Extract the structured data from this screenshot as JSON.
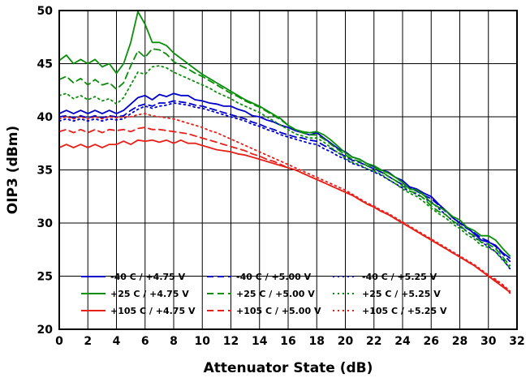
{
  "chart_data": {
    "type": "line",
    "title": "",
    "xlabel": "Attenuator State (dB)",
    "ylabel": "OIP3 (dBm)",
    "xlim": [
      0,
      32
    ],
    "ylim": [
      20,
      50
    ],
    "xticks": [
      "0",
      "2",
      "4",
      "6",
      "8",
      "10",
      "12",
      "14",
      "16",
      "18",
      "20",
      "22",
      "24",
      "26",
      "28",
      "30",
      "32"
    ],
    "yticks": [
      "20",
      "25",
      "30",
      "35",
      "40",
      "45",
      "50"
    ],
    "grid": true,
    "legend_placement": "bottom-left",
    "x": [
      0,
      0.5,
      1,
      1.5,
      2,
      2.5,
      3,
      3.5,
      4,
      4.5,
      5,
      5.5,
      6,
      6.5,
      7,
      7.5,
      8,
      8.5,
      9,
      9.5,
      10,
      10.5,
      11,
      11.5,
      12,
      12.5,
      13,
      13.5,
      14,
      14.5,
      15,
      15.5,
      16,
      16.5,
      17,
      17.5,
      18,
      18.5,
      19,
      19.5,
      20,
      20.5,
      21,
      21.5,
      22,
      22.5,
      23,
      23.5,
      24,
      24.5,
      25,
      25.5,
      26,
      26.5,
      27,
      27.5,
      28,
      28.5,
      29,
      29.5,
      30,
      30.5,
      31,
      31.5
    ],
    "series": [
      {
        "name": "-40 C / +4.75 V",
        "color": "#0000cc",
        "dash": "solid",
        "values": [
          40.3,
          40.6,
          40.3,
          40.6,
          40.3,
          40.6,
          40.3,
          40.6,
          40.3,
          40.6,
          41.2,
          41.8,
          42.0,
          41.6,
          42.1,
          41.9,
          42.2,
          42.0,
          42.0,
          41.6,
          41.5,
          41.3,
          41.2,
          41.0,
          41.0,
          40.7,
          40.5,
          40.1,
          40.0,
          39.7,
          39.5,
          39.2,
          39.0,
          38.7,
          38.5,
          38.3,
          38.5,
          38.0,
          37.5,
          37.0,
          36.7,
          36.2,
          36.0,
          35.6,
          35.3,
          35.0,
          34.8,
          34.3,
          34.0,
          33.4,
          33.2,
          32.8,
          32.5,
          31.8,
          31.2,
          30.5,
          30.0,
          29.6,
          29.0,
          28.4,
          28.2,
          27.9,
          27.2,
          26.7
        ]
      },
      {
        "name": "-40 C / +5.00 V",
        "color": "#0000cc",
        "dash": "dash",
        "values": [
          40.0,
          40.1,
          39.9,
          40.1,
          39.9,
          40.1,
          39.9,
          40.1,
          40.0,
          40.1,
          40.6,
          41.0,
          41.2,
          41.0,
          41.3,
          41.3,
          41.5,
          41.4,
          41.3,
          41.1,
          41.0,
          40.8,
          40.6,
          40.4,
          40.2,
          40.0,
          39.8,
          39.5,
          39.3,
          39.0,
          38.8,
          38.5,
          38.3,
          38.1,
          38.0,
          37.8,
          37.7,
          37.3,
          37.0,
          36.6,
          36.3,
          35.9,
          35.7,
          35.4,
          35.1,
          34.8,
          34.4,
          34.0,
          33.6,
          33.3,
          33.0,
          32.6,
          32.3,
          31.7,
          31.1,
          30.6,
          30.0,
          29.5,
          29.1,
          28.6,
          28.3,
          27.8,
          27.1,
          26.4
        ]
      },
      {
        "name": "-40 C / +5.25 V",
        "color": "#0000cc",
        "dash": "dot",
        "values": [
          39.6,
          39.8,
          39.6,
          39.8,
          39.6,
          39.8,
          39.6,
          39.8,
          39.7,
          39.8,
          40.3,
          40.7,
          41.0,
          40.8,
          41.0,
          41.1,
          41.3,
          41.2,
          41.1,
          40.9,
          40.8,
          40.6,
          40.4,
          40.2,
          40.0,
          39.8,
          39.6,
          39.3,
          39.1,
          38.8,
          38.6,
          38.3,
          38.1,
          37.9,
          37.7,
          37.5,
          37.4,
          37.0,
          36.7,
          36.3,
          36.0,
          35.6,
          35.4,
          35.1,
          34.8,
          34.5,
          34.1,
          33.7,
          33.3,
          33.0,
          32.7,
          32.3,
          32.0,
          31.4,
          30.8,
          30.2,
          29.7,
          29.2,
          28.7,
          28.2,
          27.8,
          27.3,
          26.6,
          25.7
        ]
      },
      {
        "name": "+25 C / +4.75 V",
        "color": "#0a8f0a",
        "dash": "solid",
        "values": [
          45.3,
          45.8,
          45.0,
          45.4,
          45.0,
          45.4,
          44.7,
          45.0,
          44.1,
          45.0,
          47.0,
          49.9,
          48.7,
          47.0,
          47.0,
          46.7,
          46.0,
          45.5,
          45.0,
          44.5,
          44.0,
          43.6,
          43.2,
          42.8,
          42.4,
          42.0,
          41.6,
          41.3,
          41.0,
          40.6,
          40.2,
          39.8,
          39.2,
          38.8,
          38.6,
          38.5,
          38.6,
          38.3,
          37.8,
          37.2,
          36.6,
          36.2,
          36.0,
          35.6,
          35.4,
          35.0,
          34.7,
          34.3,
          33.8,
          33.2,
          33.1,
          32.6,
          31.9,
          31.5,
          31.2,
          30.6,
          30.3,
          29.6,
          29.3,
          28.8,
          28.8,
          28.4,
          27.6,
          26.9
        ]
      },
      {
        "name": "+25 C / +5.00 V",
        "color": "#0a8f0a",
        "dash": "dash",
        "values": [
          43.5,
          43.8,
          43.2,
          43.6,
          43.0,
          43.5,
          43.0,
          43.2,
          42.6,
          43.2,
          44.8,
          46.2,
          45.6,
          46.4,
          46.3,
          45.9,
          45.2,
          44.8,
          44.5,
          44.1,
          43.8,
          43.4,
          43.0,
          42.6,
          42.2,
          41.9,
          41.5,
          41.2,
          40.9,
          40.5,
          40.1,
          39.7,
          39.2,
          38.8,
          38.5,
          38.3,
          38.3,
          37.9,
          37.4,
          36.9,
          36.4,
          36.0,
          35.8,
          35.4,
          35.2,
          34.9,
          34.4,
          34.0,
          33.5,
          33.0,
          32.8,
          32.3,
          31.6,
          31.1,
          30.8,
          30.2,
          29.8,
          29.2,
          28.8,
          28.2,
          28.0,
          27.6,
          26.8,
          26.0
        ]
      },
      {
        "name": "+25 C / +5.25 V",
        "color": "#0a8f0a",
        "dash": "dot",
        "values": [
          42.0,
          42.2,
          41.7,
          42.0,
          41.6,
          41.9,
          41.5,
          41.7,
          41.2,
          41.8,
          43.0,
          44.2,
          44.0,
          44.7,
          44.8,
          44.6,
          44.2,
          43.9,
          43.6,
          43.3,
          43.0,
          42.7,
          42.3,
          42.0,
          41.7,
          41.3,
          41.0,
          40.7,
          40.4,
          40.0,
          39.6,
          39.2,
          38.8,
          38.4,
          38.2,
          38.0,
          38.0,
          37.6,
          37.1,
          36.6,
          36.1,
          35.7,
          35.5,
          35.1,
          34.9,
          34.6,
          34.1,
          33.7,
          33.2,
          32.8,
          32.5,
          32.0,
          31.4,
          30.9,
          30.5,
          29.9,
          29.5,
          28.9,
          28.5,
          27.9,
          27.7,
          27.3,
          26.5,
          25.8
        ]
      },
      {
        "name": "+105 C / +4.75 V",
        "color": "#e8201a",
        "dash": "solid",
        "values": [
          37.1,
          37.4,
          37.1,
          37.4,
          37.1,
          37.4,
          37.1,
          37.4,
          37.4,
          37.7,
          37.4,
          37.8,
          37.7,
          37.8,
          37.6,
          37.8,
          37.5,
          37.8,
          37.5,
          37.5,
          37.3,
          37.1,
          36.9,
          36.8,
          36.7,
          36.5,
          36.4,
          36.2,
          36.0,
          35.8,
          35.6,
          35.4,
          35.2,
          35.0,
          34.7,
          34.4,
          34.1,
          33.8,
          33.5,
          33.2,
          32.9,
          32.6,
          32.2,
          31.8,
          31.5,
          31.1,
          30.8,
          30.4,
          30.0,
          29.6,
          29.2,
          28.8,
          28.4,
          28.0,
          27.6,
          27.2,
          26.8,
          26.4,
          26.0,
          25.5,
          25.0,
          24.5,
          24.0,
          23.5
        ]
      },
      {
        "name": "+105 C / +5.00 V",
        "color": "#e8201a",
        "dash": "dash",
        "values": [
          38.6,
          38.8,
          38.5,
          38.8,
          38.5,
          38.8,
          38.5,
          38.8,
          38.7,
          38.8,
          38.6,
          38.9,
          39.0,
          38.8,
          38.8,
          38.7,
          38.6,
          38.5,
          38.4,
          38.2,
          38.0,
          37.8,
          37.6,
          37.4,
          37.2,
          37.0,
          36.8,
          36.5,
          36.3,
          36.0,
          35.8,
          35.5,
          35.2,
          35.0,
          34.7,
          34.4,
          34.1,
          33.8,
          33.5,
          33.2,
          32.9,
          32.6,
          32.2,
          31.8,
          31.5,
          31.1,
          30.8,
          30.4,
          30.0,
          29.6,
          29.2,
          28.8,
          28.4,
          28.0,
          27.6,
          27.2,
          26.8,
          26.4,
          26.0,
          25.5,
          25.0,
          24.6,
          24.1,
          23.4
        ]
      },
      {
        "name": "+105 C / +5.25 V",
        "color": "#e8201a",
        "dash": "dot",
        "values": [
          39.8,
          40.0,
          39.8,
          40.0,
          39.8,
          40.0,
          39.8,
          40.0,
          39.9,
          40.0,
          40.0,
          40.2,
          40.3,
          40.1,
          40.0,
          39.9,
          39.8,
          39.6,
          39.4,
          39.2,
          39.0,
          38.7,
          38.5,
          38.2,
          37.9,
          37.6,
          37.3,
          37.0,
          36.7,
          36.4,
          36.1,
          35.8,
          35.5,
          35.2,
          34.9,
          34.6,
          34.3,
          34.0,
          33.7,
          33.4,
          33.1,
          32.7,
          32.3,
          31.9,
          31.6,
          31.2,
          30.9,
          30.5,
          30.1,
          29.7,
          29.3,
          28.9,
          28.5,
          28.1,
          27.7,
          27.3,
          26.9,
          26.5,
          26.1,
          25.6,
          25.1,
          24.7,
          24.2,
          23.6
        ]
      }
    ]
  }
}
